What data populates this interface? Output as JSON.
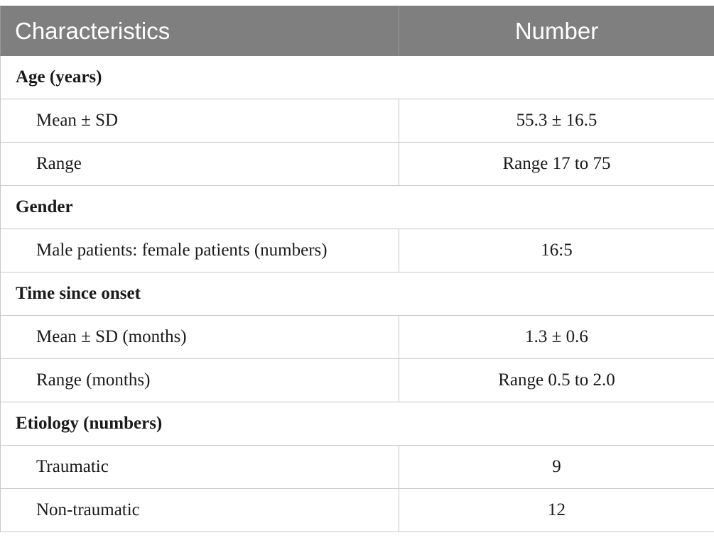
{
  "table": {
    "headers": {
      "characteristics": "Characteristics",
      "number": "Number"
    },
    "sections": [
      {
        "title": "Age (years)",
        "rows": [
          {
            "label": "Mean ± SD",
            "value": "55.3 ± 16.5"
          },
          {
            "label": "Range",
            "value": "Range 17 to 75"
          }
        ]
      },
      {
        "title": "Gender",
        "rows": [
          {
            "label": "Male patients: female patients (numbers)",
            "value": "16:5"
          }
        ]
      },
      {
        "title": "Time since onset",
        "rows": [
          {
            "label": "Mean ± SD (months)",
            "value": "1.3 ± 0.6"
          },
          {
            "label": "Range (months)",
            "value": "Range 0.5 to 2.0"
          }
        ]
      },
      {
        "title": "Etiology (numbers)",
        "rows": [
          {
            "label": "Traumatic",
            "value": "9"
          },
          {
            "label": "Non-traumatic",
            "value": "12"
          }
        ]
      }
    ]
  },
  "colors": {
    "header_bg": "#7f7f7f",
    "header_text": "#ffffff",
    "grid": "#c8c8c8"
  }
}
